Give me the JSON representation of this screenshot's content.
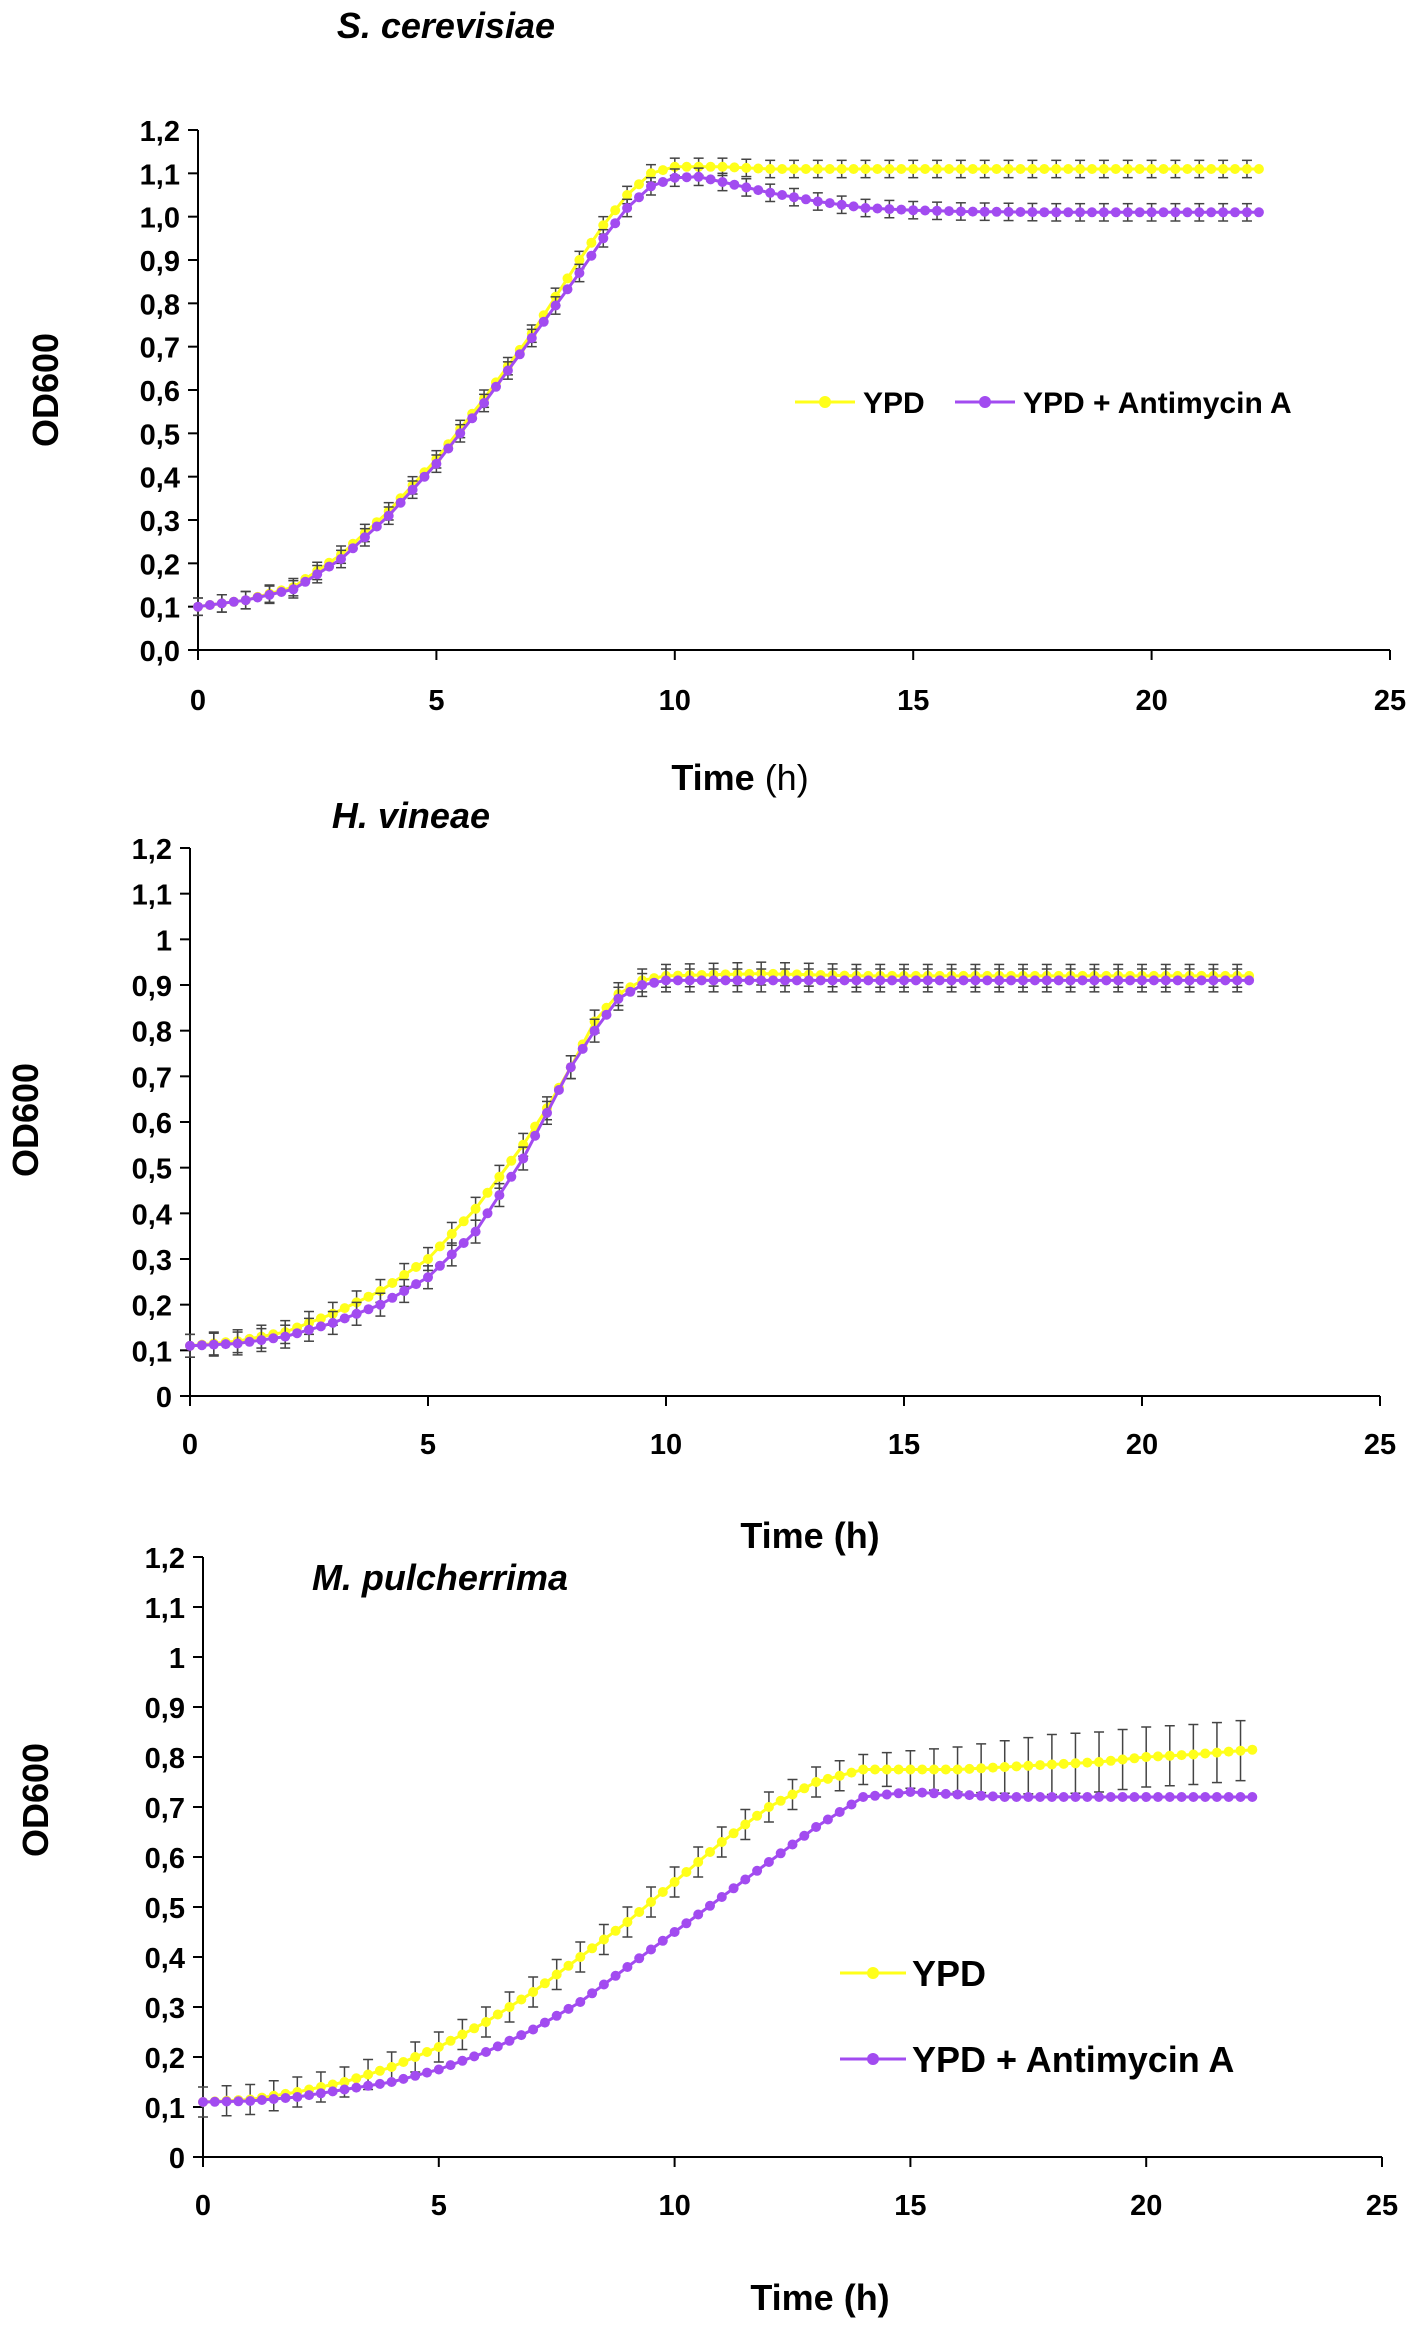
{
  "figure": {
    "charts": [
      {
        "id": "s-cerevisiae",
        "title": "S. cerevisiae",
        "xlabel_bold": "Time",
        "xlabel_rest": " (h)",
        "ylabel": "OD600",
        "xticks": [
          "0",
          "5",
          "10",
          "15",
          "20",
          "25"
        ],
        "yticks": [
          "0,0",
          "0,1",
          "0,2",
          "0,3",
          "0,4",
          "0,5",
          "0,6",
          "0,7",
          "0,8",
          "0,9",
          "1,0",
          "1,1",
          "1,2"
        ],
        "legend_items": [
          "YPD",
          "YPD + Antimycin A"
        ]
      },
      {
        "id": "h-vineae",
        "title": "H. vineae",
        "xlabel_bold": "Time (h)",
        "xlabel_rest": "",
        "ylabel": "OD600",
        "xticks": [
          "0",
          "5",
          "10",
          "15",
          "20",
          "25"
        ],
        "yticks": [
          "0",
          "0,1",
          "0,2",
          "0,3",
          "0,4",
          "0,5",
          "0,6",
          "0,7",
          "0,8",
          "0,9",
          "1",
          "1,1",
          "1,2"
        ],
        "legend_items": []
      },
      {
        "id": "m-pulcherrima",
        "title": "M. pulcherrima",
        "xlabel_bold": "Time (h)",
        "xlabel_rest": "",
        "ylabel": "OD600",
        "xticks": [
          "0",
          "5",
          "10",
          "15",
          "20",
          "25"
        ],
        "yticks": [
          "0",
          "0,1",
          "0,2",
          "0,3",
          "0,4",
          "0,5",
          "0,6",
          "0,7",
          "0,8",
          "0,9",
          "1",
          "1,1",
          "1,2"
        ],
        "legend_items": [
          "YPD",
          "YPD + Antimycin A"
        ]
      }
    ]
  },
  "chart_data": [
    {
      "type": "line",
      "title": "S. cerevisiae",
      "xlabel": "Time (h)",
      "ylabel": "OD600",
      "xlim": [
        0,
        25
      ],
      "ylim": [
        0,
        1.2
      ],
      "series": [
        {
          "name": "YPD",
          "color": "#ffff1a",
          "x": [
            0,
            1,
            2,
            3,
            4,
            5,
            6,
            7,
            8,
            8.5,
            9,
            9.5,
            10,
            11,
            12,
            14,
            16,
            18,
            20,
            22.3
          ],
          "y": [
            0.1,
            0.115,
            0.145,
            0.22,
            0.32,
            0.44,
            0.58,
            0.73,
            0.9,
            0.98,
            1.05,
            1.1,
            1.115,
            1.115,
            1.11,
            1.11,
            1.11,
            1.11,
            1.11,
            1.11
          ],
          "err": 0.02
        },
        {
          "name": "YPD + Antimycin A",
          "color": "#a24bf0",
          "x": [
            0,
            1,
            2,
            3,
            4,
            5,
            6,
            7,
            8,
            8.5,
            9,
            9.5,
            10,
            10.5,
            11,
            12,
            13,
            14,
            15,
            16,
            18,
            20,
            22.3
          ],
          "y": [
            0.1,
            0.115,
            0.14,
            0.21,
            0.31,
            0.43,
            0.57,
            0.72,
            0.87,
            0.95,
            1.02,
            1.07,
            1.09,
            1.092,
            1.08,
            1.055,
            1.035,
            1.02,
            1.015,
            1.012,
            1.01,
            1.01,
            1.01
          ],
          "err": 0.02
        }
      ]
    },
    {
      "type": "line",
      "title": "H. vineae",
      "xlabel": "Time (h)",
      "ylabel": "OD600",
      "xlim": [
        0,
        25
      ],
      "ylim": [
        0,
        1.2
      ],
      "series": [
        {
          "name": "YPD",
          "color": "#ffff1a",
          "x": [
            0,
            1,
            2,
            3,
            4,
            5,
            6,
            7,
            7.5,
            8,
            8.5,
            9,
            9.5,
            10,
            12,
            14,
            16,
            18,
            20,
            22.3
          ],
          "y": [
            0.11,
            0.12,
            0.14,
            0.18,
            0.23,
            0.3,
            0.41,
            0.55,
            0.63,
            0.72,
            0.82,
            0.88,
            0.91,
            0.92,
            0.925,
            0.92,
            0.92,
            0.92,
            0.92,
            0.92
          ],
          "err": 0.025
        },
        {
          "name": "YPD + Antimycin A",
          "color": "#a24bf0",
          "x": [
            0,
            1,
            2,
            3,
            4,
            5,
            6,
            7,
            7.5,
            8,
            8.5,
            9,
            9.5,
            10,
            12,
            14,
            16,
            18,
            20,
            22.3
          ],
          "y": [
            0.11,
            0.115,
            0.13,
            0.16,
            0.2,
            0.26,
            0.36,
            0.52,
            0.62,
            0.72,
            0.8,
            0.87,
            0.9,
            0.91,
            0.91,
            0.91,
            0.91,
            0.91,
            0.91,
            0.91
          ],
          "err": 0.025
        }
      ]
    },
    {
      "type": "line",
      "title": "M. pulcherrima",
      "xlabel": "Time (h)",
      "ylabel": "OD600",
      "xlim": [
        0,
        25
      ],
      "ylim": [
        0,
        1.2
      ],
      "series": [
        {
          "name": "YPD",
          "color": "#ffff1a",
          "x": [
            0,
            1,
            2,
            3,
            4,
            5,
            6,
            7,
            8,
            9,
            10,
            11,
            12,
            13,
            14,
            15,
            16,
            17,
            18,
            19,
            20,
            21,
            22.3
          ],
          "y": [
            0.11,
            0.115,
            0.13,
            0.15,
            0.18,
            0.22,
            0.27,
            0.33,
            0.4,
            0.47,
            0.55,
            0.63,
            0.7,
            0.75,
            0.775,
            0.775,
            0.775,
            0.78,
            0.785,
            0.79,
            0.8,
            0.805,
            0.815
          ],
          "err": 0.03,
          "err_late": 0.06
        },
        {
          "name": "YPD + Antimycin A",
          "color": "#a24bf0",
          "x": [
            0,
            1,
            2,
            3,
            4,
            5,
            6,
            7,
            8,
            9,
            10,
            11,
            12,
            13,
            14,
            15,
            16,
            17,
            18,
            19,
            20,
            21,
            22.3
          ],
          "y": [
            0.11,
            0.112,
            0.12,
            0.135,
            0.15,
            0.175,
            0.21,
            0.255,
            0.31,
            0.38,
            0.45,
            0.52,
            0.59,
            0.66,
            0.72,
            0.73,
            0.725,
            0.72,
            0.72,
            0.72,
            0.72,
            0.72,
            0.72
          ],
          "err": 0.0
        }
      ]
    }
  ]
}
